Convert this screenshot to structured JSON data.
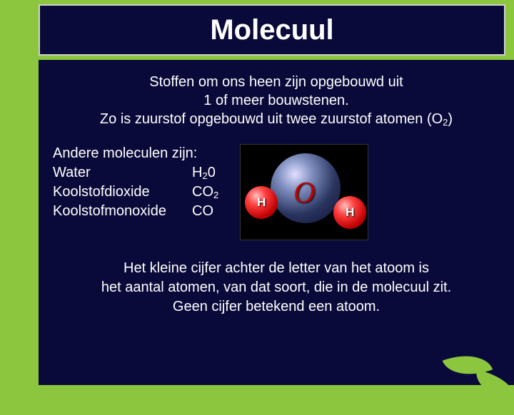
{
  "colors": {
    "background_green": "#8cc63f",
    "panel_navy": "#0a0a3a",
    "title_border": "#d0d0d0",
    "text_white": "#ffffff",
    "oxygen_gradient": [
      "#e0e0ff",
      "#8090c0",
      "#2a3560",
      "#0a1030"
    ],
    "hydrogen_gradient": [
      "#ffc0c0",
      "#ff4040",
      "#c00000",
      "#600000"
    ],
    "o_label_red": "#c00000",
    "image_bg": "#000000"
  },
  "typography": {
    "title_fontsize": 40,
    "title_weight": "bold",
    "body_fontsize": 20,
    "font_family": "Arial"
  },
  "title": "Molecuul",
  "intro": {
    "line1": "Stoffen om ons heen zijn opgebouwd uit",
    "line2": "1 of meer bouwstenen.",
    "line3_pre": "Zo is zuurstof opgebouwd uit twee zuurstof atomen (O",
    "line3_sub": "2",
    "line3_post": ")"
  },
  "molecule_list": {
    "heading": "Andere moleculen zijn:",
    "items": [
      {
        "name": "Water",
        "formula_main": "H",
        "formula_sub": "2",
        "formula_tail": "0"
      },
      {
        "name": "Koolstofdioxide",
        "formula_main": "CO",
        "formula_sub": "2",
        "formula_tail": ""
      },
      {
        "name": "Koolstofmonoxide",
        "formula_main": "CO",
        "formula_sub": "",
        "formula_tail": ""
      }
    ]
  },
  "water_diagram": {
    "oxygen_label": "O",
    "hydrogen_label_left": "H",
    "hydrogen_label_right": "H"
  },
  "footer": {
    "line1": "Het kleine cijfer achter de letter van het atoom is",
    "line2": "het aantal atomen, van dat soort, die in de molecuul zit.",
    "line3": "Geen cijfer betekend een atoom."
  }
}
